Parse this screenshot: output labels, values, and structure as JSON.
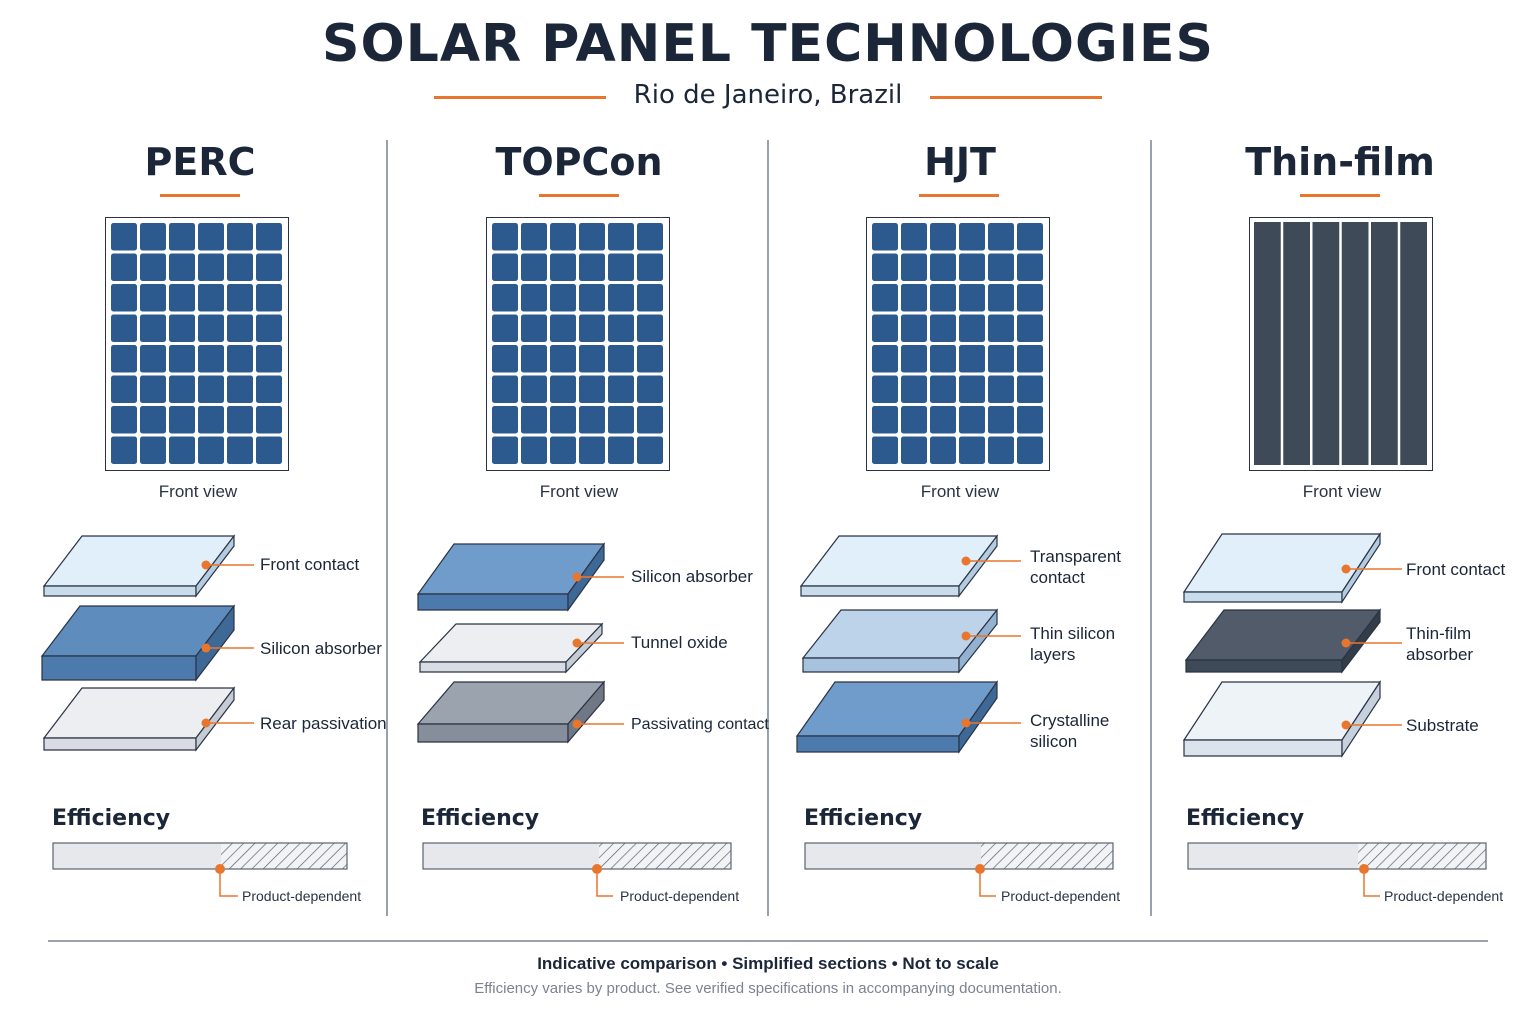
{
  "header": {
    "title": "SOLAR PANEL TECHNOLOGIES",
    "subtitle": "Rio de Janeiro, Brazil"
  },
  "colors": {
    "accent": "#e8762c",
    "text": "#1b2638",
    "cell_blue": "#2c5a8f",
    "thin_film": "#3f4a59"
  },
  "technologies": [
    {
      "name": "PERC",
      "front_view_label": "Front view",
      "layers": [
        {
          "label": "Front contact"
        },
        {
          "label": "Silicon absorber"
        },
        {
          "label": "Rear passivation"
        }
      ],
      "efficiency_label": "Efficiency",
      "efficiency_note": "Product-dependent"
    },
    {
      "name": "TOPCon",
      "front_view_label": "Front view",
      "layers": [
        {
          "label": "Silicon absorber"
        },
        {
          "label": "Tunnel oxide"
        },
        {
          "label": "Passivating contact"
        }
      ],
      "efficiency_label": "Efficiency",
      "efficiency_note": "Product-dependent"
    },
    {
      "name": "HJT",
      "front_view_label": "Front view",
      "layers": [
        {
          "label": "Transparent contact"
        },
        {
          "label": "Thin silicon layers"
        },
        {
          "label": "Crystalline silicon"
        }
      ],
      "efficiency_label": "Efficiency",
      "efficiency_note": "Product-dependent"
    },
    {
      "name": "Thin-film",
      "front_view_label": "Front view",
      "layers": [
        {
          "label": "Front contact"
        },
        {
          "label": "Thin-film absorber"
        },
        {
          "label": "Substrate"
        }
      ],
      "efficiency_label": "Efficiency",
      "efficiency_note": "Product-dependent"
    }
  ],
  "footer": {
    "main": "Indicative comparison • Simplified sections • Not to scale",
    "note": "Efficiency varies by product. See verified specifications in accompanying documentation."
  }
}
